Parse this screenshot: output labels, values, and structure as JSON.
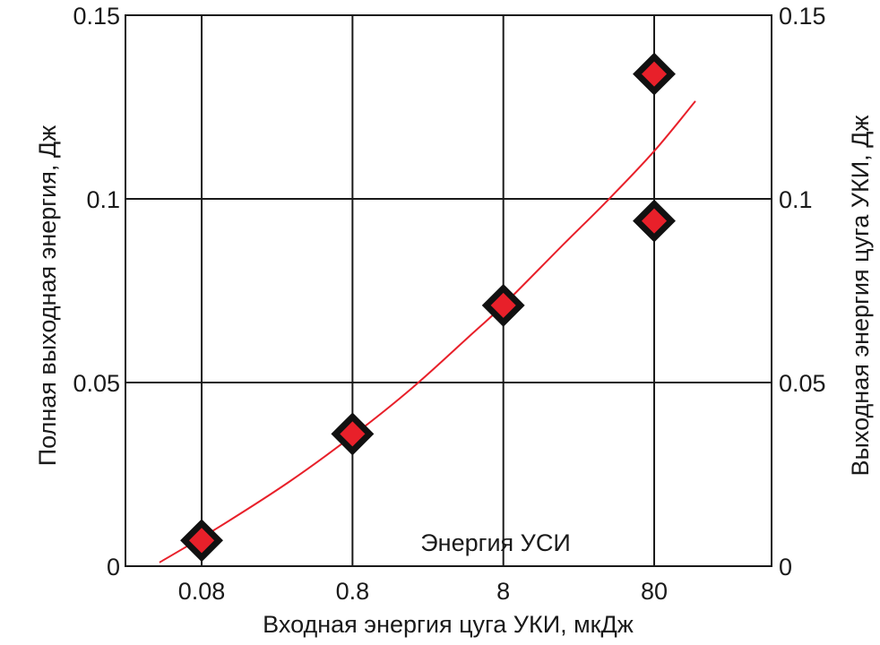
{
  "chart_data": {
    "type": "scatter",
    "x_scale": "log",
    "x_ticks": [
      0.08,
      0.8,
      8,
      80
    ],
    "x_tick_labels": [
      "0.08",
      "0.8",
      "8",
      "80"
    ],
    "xlim": [
      0.025,
      480
    ],
    "ylim": [
      0,
      0.15
    ],
    "y_ticks": [
      0,
      0.05,
      0.1,
      0.15
    ],
    "y_tick_labels": [
      "0",
      "0.05",
      "0.1",
      "0.15"
    ],
    "y2_tick_labels": [
      "0",
      "0.05",
      "0.1",
      "0.15"
    ],
    "xlabel": "Входная энергия цуга УКИ, мкДж",
    "ylabel": "Полная выходная энергия, Дж",
    "y2label": "Выходная энергия цуга УКИ, Дж",
    "grid": true,
    "annotation": "Энергия УСИ",
    "series": [
      {
        "kind": "points",
        "marker": "diamond",
        "color": "#e8202a",
        "points": [
          {
            "x": 0.08,
            "y": 0.007
          },
          {
            "x": 0.8,
            "y": 0.036
          },
          {
            "x": 8,
            "y": 0.071
          },
          {
            "x": 80,
            "y": 0.134
          },
          {
            "x": 80,
            "y": 0.094
          }
        ]
      },
      {
        "kind": "line",
        "color": "#e8202a",
        "points": [
          {
            "x": 0.042,
            "y": 0.001
          },
          {
            "x": 0.1,
            "y": 0.0102
          },
          {
            "x": 0.3,
            "y": 0.0228
          },
          {
            "x": 0.8,
            "y": 0.0355
          },
          {
            "x": 2,
            "y": 0.0486
          },
          {
            "x": 5,
            "y": 0.0634
          },
          {
            "x": 8,
            "y": 0.0711
          },
          {
            "x": 20,
            "y": 0.0876
          },
          {
            "x": 40,
            "y": 0.0999
          },
          {
            "x": 80,
            "y": 0.113
          },
          {
            "x": 150,
            "y": 0.1266
          }
        ]
      }
    ]
  }
}
